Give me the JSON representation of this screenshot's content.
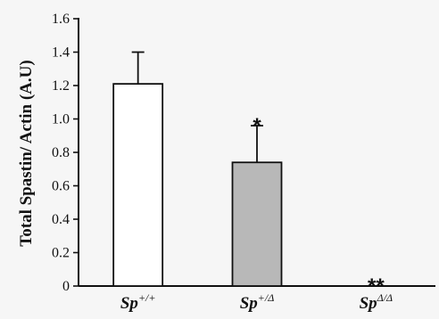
{
  "chart_data": {
    "type": "bar",
    "categories": [
      {
        "base": "Sp",
        "sup": "+/+"
      },
      {
        "base": "Sp",
        "sup": "+/Δ"
      },
      {
        "base": "Sp",
        "sup": "Δ/Δ"
      }
    ],
    "values": [
      1.21,
      0.74,
      0.0
    ],
    "errors": [
      0.19,
      0.22,
      0.0
    ],
    "significance": [
      "",
      "*",
      "**"
    ],
    "bar_colors": [
      "#ffffff",
      "#b8b8b8",
      "#b8b8b8"
    ],
    "ylabel": "Total Spastin/ Actin (A.U)",
    "xlabel": "",
    "ylim": [
      0,
      1.6
    ],
    "yticks": [
      0,
      0.2,
      0.4,
      0.6,
      0.8,
      1.0,
      1.2,
      1.4,
      1.6
    ],
    "ytick_labels": [
      "0",
      "0.2",
      "0.4",
      "0.6",
      "0.8",
      "1.0",
      "1.2",
      "1.4",
      "1.6"
    ],
    "grid": false
  }
}
